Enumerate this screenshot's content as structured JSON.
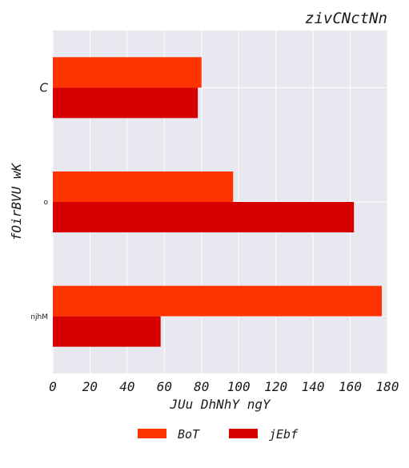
{
  "chart_data": {
    "type": "bar",
    "orientation": "horizontal",
    "title": "zivCNctNn",
    "xlabel": "JUu DhNhY ngY",
    "ylabel": "fOirBVU wK",
    "categories": [
      "C",
      "o",
      "njhM"
    ],
    "series": [
      {
        "name": "BoT",
        "color": "#ff3300",
        "values": [
          80,
          97,
          177
        ]
      },
      {
        "name": "jEbf",
        "color": "#d60000",
        "values": [
          78,
          162,
          58
        ]
      }
    ],
    "xlim": [
      0,
      180
    ],
    "xticks": [
      "0",
      "20",
      "40",
      "60",
      "80",
      "100",
      "120",
      "140",
      "160",
      "180"
    ],
    "grid": true,
    "legend_position": "bottom-center",
    "plot_background": "#e8e8f0"
  }
}
